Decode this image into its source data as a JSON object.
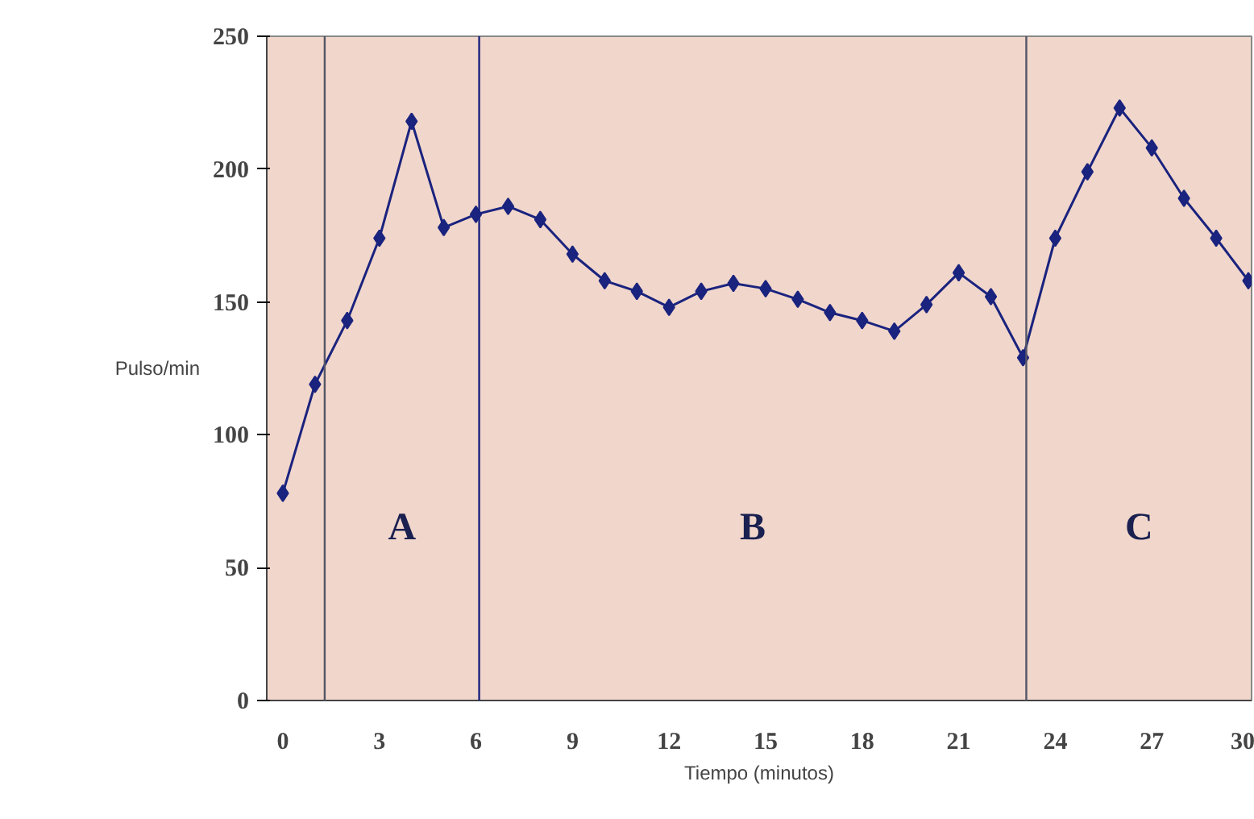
{
  "chart_data": {
    "type": "line",
    "xlabel": "Tiempo (minutos)",
    "ylabel": "Pulso/min",
    "x": [
      0,
      1,
      2,
      3,
      4,
      5,
      6,
      7,
      8,
      9,
      10,
      11,
      12,
      13,
      14,
      15,
      16,
      17,
      18,
      19,
      20,
      21,
      22,
      23,
      24,
      25,
      26,
      27,
      28,
      29,
      30
    ],
    "series": [
      {
        "color": "#1a237e",
        "values": [
          78,
          119,
          143,
          174,
          218,
          178,
          183,
          186,
          181,
          168,
          158,
          154,
          148,
          154,
          157,
          155,
          151,
          146,
          143,
          139,
          149,
          161,
          152,
          129,
          174,
          199,
          223,
          208,
          189,
          174,
          158
        ]
      }
    ],
    "xlim": [
      -0.5,
      30.1
    ],
    "ylim": [
      0,
      250
    ],
    "xticks": [
      0,
      3,
      6,
      9,
      12,
      15,
      18,
      21,
      24,
      27,
      30
    ],
    "yticks": [
      0,
      50,
      100,
      150,
      200,
      250
    ],
    "ref_lines": [
      {
        "axis": "x",
        "value": 1.3,
        "color": "#555566"
      },
      {
        "axis": "x",
        "value": 6.1,
        "color": "#1a237e"
      },
      {
        "axis": "x",
        "value": 23.1,
        "color": "#555566"
      }
    ],
    "annotations": [
      "A",
      "B",
      "C"
    ],
    "marker": "diamond",
    "line_style": "solid",
    "grid": false
  }
}
